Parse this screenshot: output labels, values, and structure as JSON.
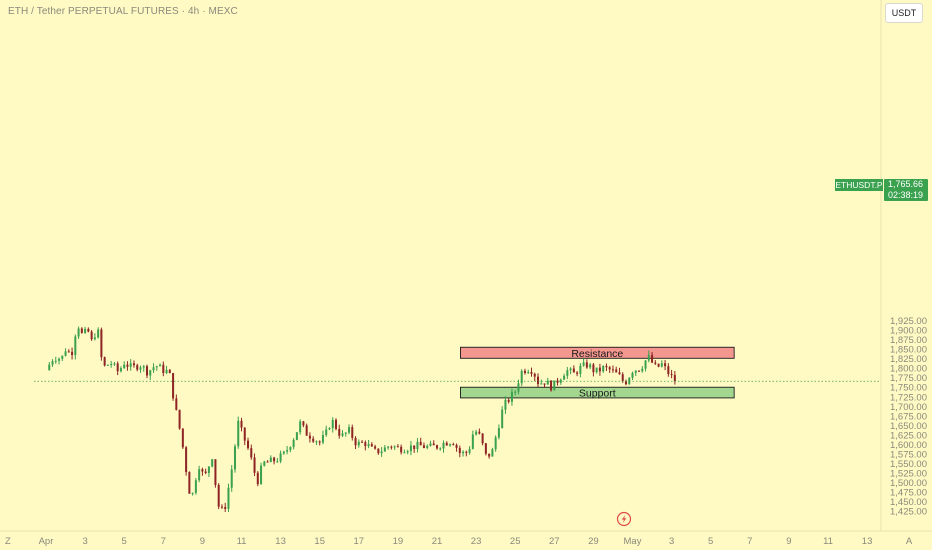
{
  "header": {
    "title": "ETH / Tether PERPETUAL FUTURES · 4h · MEXC"
  },
  "toolbar": {
    "currency_label": "USDT",
    "left_corner": "Z",
    "right_corner": "A"
  },
  "last_price": {
    "symbol": "ETHUSDT.P",
    "price": "1,765.66",
    "countdown": "02:38:19",
    "value": 1765.66
  },
  "colors": {
    "background": "#fff9c4",
    "up": "#3aa14f",
    "down": "#8e2424",
    "resistance": "#f4978e",
    "support": "#a3d68f",
    "last_price_line": "#3aa14f"
  },
  "icons": {
    "replay": "lightning-icon"
  },
  "chart_data": {
    "type": "candlestick",
    "ylim": [
      1406,
      1950
    ],
    "y_ticks": [
      1925,
      1900,
      1875,
      1850,
      1825,
      1800,
      1775,
      1750,
      1725,
      1700,
      1675,
      1650,
      1625,
      1600,
      1575,
      1550,
      1525,
      1500,
      1475,
      1450,
      1425
    ],
    "y_tick_labels": [
      "1,925.00",
      "1,900.00",
      "1,875.00",
      "1,850.00",
      "1,825.00",
      "1,800.00",
      "1,775.00",
      "1,750.00",
      "1,725.00",
      "1,700.00",
      "1,675.00",
      "1,650.00",
      "1,625.00",
      "1,600.00",
      "1,575.00",
      "1,550.00",
      "1,525.00",
      "1,500.00",
      "1,475.00",
      "1,450.00",
      "1,425.00"
    ],
    "x_ticks": [
      {
        "label": "Apr",
        "day": 1
      },
      {
        "label": "3",
        "day": 3
      },
      {
        "label": "5",
        "day": 5
      },
      {
        "label": "7",
        "day": 7
      },
      {
        "label": "9",
        "day": 9
      },
      {
        "label": "11",
        "day": 11
      },
      {
        "label": "13",
        "day": 13
      },
      {
        "label": "15",
        "day": 15
      },
      {
        "label": "17",
        "day": 17
      },
      {
        "label": "19",
        "day": 19
      },
      {
        "label": "21",
        "day": 21
      },
      {
        "label": "23",
        "day": 23
      },
      {
        "label": "25",
        "day": 25
      },
      {
        "label": "27",
        "day": 27
      },
      {
        "label": "29",
        "day": 29
      },
      {
        "label": "May",
        "day": 31
      },
      {
        "label": "3",
        "day": 33
      },
      {
        "label": "5",
        "day": 35
      },
      {
        "label": "7",
        "day": 37
      },
      {
        "label": "9",
        "day": 39
      },
      {
        "label": "11",
        "day": 41
      },
      {
        "label": "13",
        "day": 43
      }
    ],
    "zones": [
      {
        "name": "resistance",
        "label": "Resistance",
        "top": 1855,
        "bottom": 1826,
        "start_day": 22.2,
        "end_day": 36.2
      },
      {
        "name": "support",
        "label": "Support",
        "top": 1750,
        "bottom": 1722,
        "start_day": 22.2,
        "end_day": 36.2
      }
    ],
    "path": [
      [
        0.0,
        1795
      ],
      [
        0.4,
        1830
      ],
      [
        0.8,
        1825
      ],
      [
        1.0,
        1850
      ],
      [
        1.3,
        1835
      ],
      [
        1.6,
        1920
      ],
      [
        1.9,
        1880
      ],
      [
        2.1,
        1905
      ],
      [
        2.4,
        1860
      ],
      [
        2.6,
        1920
      ],
      [
        2.9,
        1800
      ],
      [
        3.3,
        1815
      ],
      [
        3.7,
        1790
      ],
      [
        4.0,
        1815
      ],
      [
        4.4,
        1800
      ],
      [
        4.8,
        1810
      ],
      [
        5.2,
        1790
      ],
      [
        5.6,
        1808
      ],
      [
        6.0,
        1795
      ],
      [
        6.3,
        1790
      ],
      [
        6.6,
        1700
      ],
      [
        6.9,
        1625
      ],
      [
        7.1,
        1560
      ],
      [
        7.3,
        1480
      ],
      [
        7.5,
        1470
      ],
      [
        7.8,
        1550
      ],
      [
        8.1,
        1510
      ],
      [
        8.5,
        1570
      ],
      [
        8.8,
        1440
      ],
      [
        9.1,
        1420
      ],
      [
        9.4,
        1505
      ],
      [
        9.6,
        1565
      ],
      [
        9.8,
        1660
      ],
      [
        10.1,
        1620
      ],
      [
        10.4,
        1580
      ],
      [
        10.8,
        1500
      ],
      [
        11.1,
        1550
      ],
      [
        11.5,
        1555
      ],
      [
        11.8,
        1560
      ],
      [
        12.2,
        1575
      ],
      [
        12.7,
        1620
      ],
      [
        13.0,
        1655
      ],
      [
        13.3,
        1630
      ],
      [
        13.6,
        1620
      ],
      [
        14.0,
        1605
      ],
      [
        14.3,
        1625
      ],
      [
        14.6,
        1665
      ],
      [
        14.9,
        1640
      ],
      [
        15.1,
        1620
      ],
      [
        15.5,
        1635
      ],
      [
        15.9,
        1600
      ],
      [
        16.3,
        1605
      ],
      [
        16.8,
        1580
      ],
      [
        17.2,
        1585
      ],
      [
        17.6,
        1598
      ],
      [
        18.0,
        1590
      ],
      [
        18.4,
        1590
      ],
      [
        18.8,
        1595
      ],
      [
        19.2,
        1596
      ],
      [
        19.6,
        1592
      ],
      [
        20.0,
        1595
      ],
      [
        20.4,
        1605
      ],
      [
        20.8,
        1610
      ],
      [
        21.2,
        1575
      ],
      [
        21.6,
        1580
      ],
      [
        21.9,
        1640
      ],
      [
        22.2,
        1620
      ],
      [
        22.5,
        1570
      ],
      [
        22.8,
        1575
      ],
      [
        23.1,
        1640
      ],
      [
        23.4,
        1700
      ],
      [
        23.7,
        1720
      ],
      [
        24.0,
        1740
      ],
      [
        24.3,
        1790
      ],
      [
        24.6,
        1800
      ],
      [
        24.9,
        1795
      ],
      [
        25.2,
        1760
      ],
      [
        25.5,
        1765
      ],
      [
        25.9,
        1750
      ],
      [
        26.2,
        1770
      ],
      [
        26.6,
        1795
      ],
      [
        27.0,
        1785
      ],
      [
        27.3,
        1800
      ],
      [
        27.7,
        1810
      ],
      [
        28.1,
        1790
      ],
      [
        28.5,
        1800
      ],
      [
        28.9,
        1795
      ],
      [
        29.3,
        1780
      ],
      [
        29.6,
        1760
      ],
      [
        30.0,
        1795
      ],
      [
        30.4,
        1800
      ],
      [
        30.8,
        1830
      ],
      [
        31.2,
        1800
      ],
      [
        31.5,
        1810
      ],
      [
        31.8,
        1790
      ],
      [
        32.1,
        1770
      ],
      [
        32.3,
        1765.66
      ]
    ]
  }
}
